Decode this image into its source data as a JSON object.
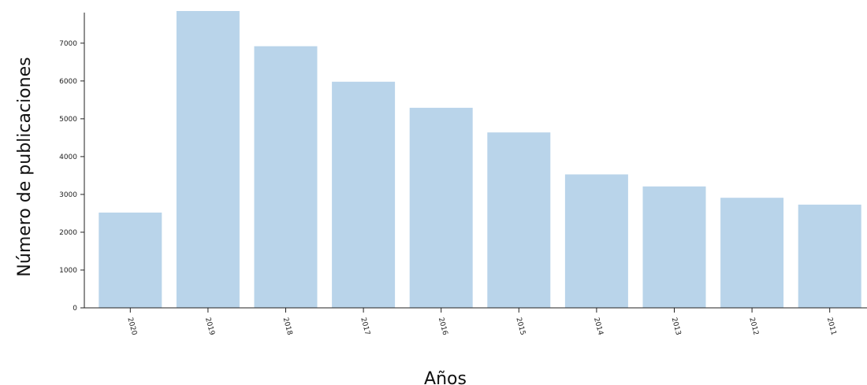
{
  "chart_data": {
    "type": "bar",
    "title": "",
    "xlabel": "Años",
    "ylabel": "Número de publicaciones",
    "categories": [
      "2020",
      "2019",
      "2018",
      "2017",
      "2016",
      "2015",
      "2014",
      "2013",
      "2012",
      "2011"
    ],
    "values": [
      2520,
      7850,
      6920,
      5980,
      5290,
      4640,
      3530,
      3210,
      2910,
      2730
    ],
    "ylim": [
      0,
      7850
    ],
    "yticks": [
      0,
      1000,
      2000,
      3000,
      4000,
      5000,
      6000,
      7000
    ],
    "ytick_labels": [
      "0",
      "1000",
      "2000",
      "3000",
      "4000",
      "5000",
      "6000",
      "7000"
    ],
    "bar_color": "#b9d4ea",
    "grid": false,
    "legend": "none"
  }
}
